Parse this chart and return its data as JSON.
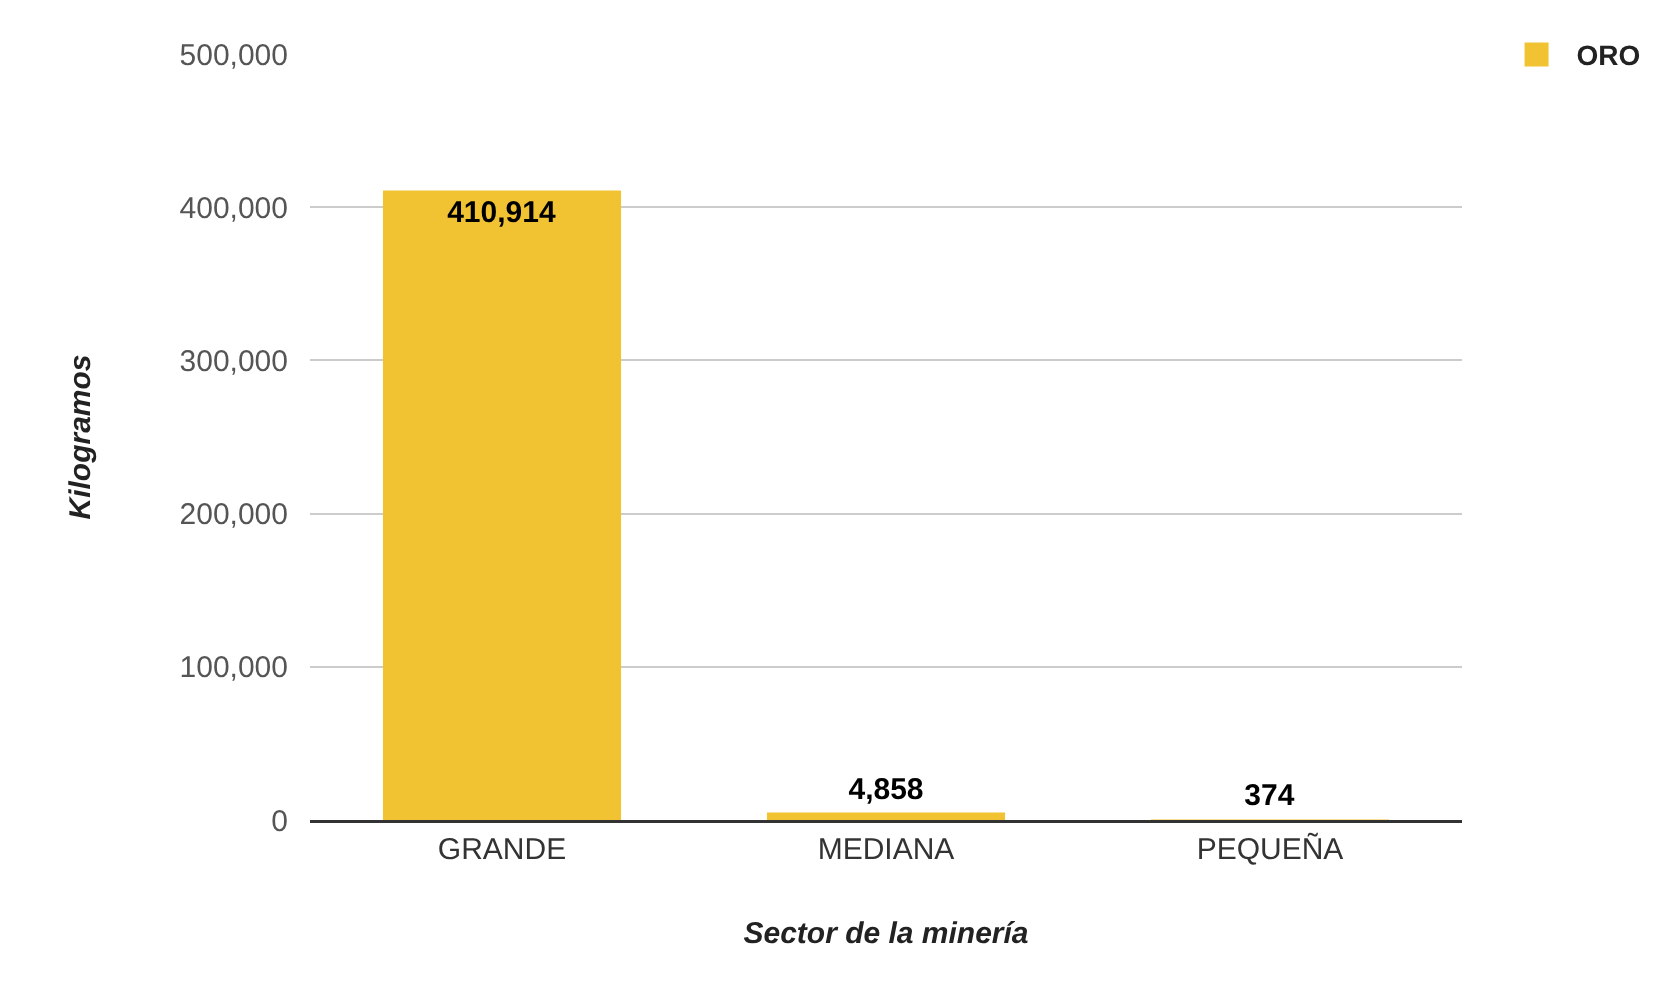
{
  "chart_data": {
    "type": "bar",
    "xlabel": "Sector de la minería",
    "ylabel": "Kilogramos",
    "categories": [
      "GRANDE",
      "MEDIANA",
      "PEQUEÑA"
    ],
    "series": [
      {
        "name": "ORO",
        "color": "#f1c232",
        "values": [
          410914,
          4858,
          374
        ],
        "value_labels": [
          "410,914",
          "4,858",
          "374"
        ]
      }
    ],
    "ylim": [
      0,
      500000
    ],
    "yticks": [
      0,
      {
        "value": 100000,
        "label": "100,000"
      },
      {
        "value": 200000,
        "label": "200,000"
      },
      {
        "value": 300000,
        "label": "300,000"
      },
      {
        "value": 400000,
        "label": "400,000"
      },
      {
        "value": 500000,
        "label": "500,000"
      }
    ],
    "grid": "y",
    "legend": "top right"
  }
}
